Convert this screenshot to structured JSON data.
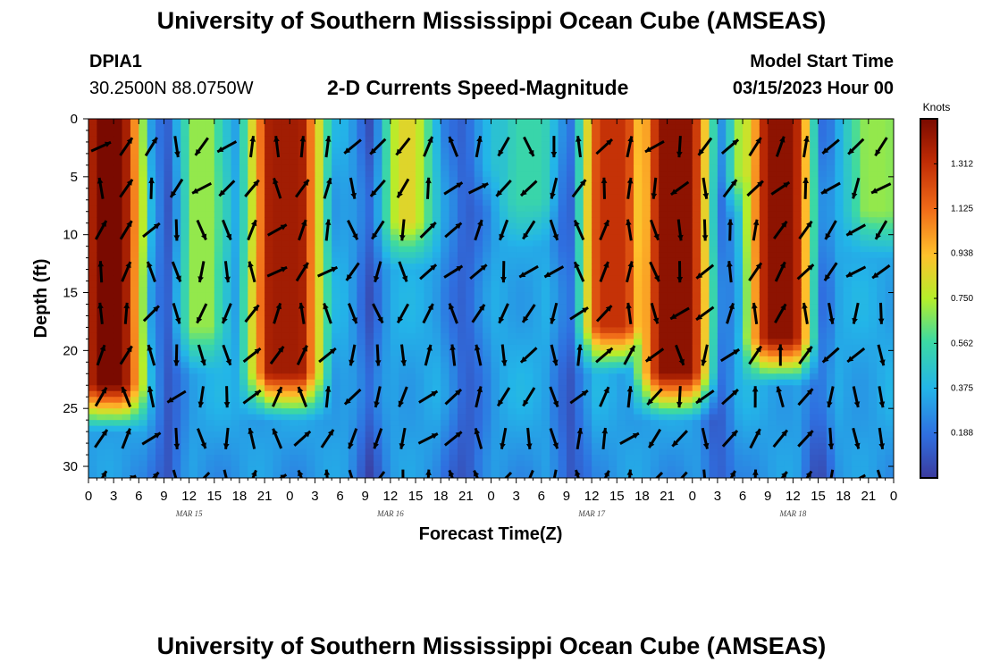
{
  "header": {
    "title": "University of Southern Mississippi Ocean Cube (AMSEAS)",
    "station_id": "DPIA1",
    "location": "30.2500N  88.0750W",
    "plot_title": "2-D Currents Speed-Magnitude",
    "model_start_label": "Model Start Time",
    "model_start_value": "03/15/2023 Hour 00"
  },
  "footer": {
    "title": "University of Southern Mississippi Ocean Cube (AMSEAS)"
  },
  "colors": {
    "slowest": "#3b3b9e",
    "fastest": "#7a0a00",
    "arrow": "#000000"
  },
  "chart_data": {
    "type": "heatmap",
    "title": "2-D Currents Speed-Magnitude",
    "xlabel": "Forecast Time(Z)",
    "ylabel": "Depth (ft)",
    "units": "Knots",
    "x_tick_labels": [
      "0",
      "3",
      "6",
      "9",
      "12",
      "15",
      "18",
      "21",
      "0",
      "3",
      "6",
      "9",
      "12",
      "15",
      "18",
      "21",
      "0",
      "3",
      "6",
      "9",
      "12",
      "15",
      "18",
      "21",
      "0",
      "3",
      "6",
      "9",
      "12",
      "15",
      "18",
      "21",
      "0"
    ],
    "date_labels": [
      {
        "label": "MAR 15",
        "hour": 12
      },
      {
        "label": "MAR 16",
        "hour": 36
      },
      {
        "label": "MAR 17",
        "hour": 60
      },
      {
        "label": "MAR 18",
        "hour": 84
      }
    ],
    "xlim": [
      0,
      96
    ],
    "ylim": [
      0,
      31
    ],
    "y_ticks": [
      0,
      5,
      10,
      15,
      20,
      25,
      30
    ],
    "colorbar_ticks": [
      "0.188",
      "0.375",
      "0.562",
      "0.750",
      "0.938",
      "1.125",
      "1.312"
    ],
    "colorbar_range": [
      0,
      1.5
    ],
    "fast_bands": [
      {
        "center_hour": 2.5,
        "half_width_hours": 3.0,
        "max_depth_ft": 23,
        "peak_knots": 1.5
      },
      {
        "center_hour": 13.5,
        "half_width_hours": 1.8,
        "max_depth_ft": 18,
        "peak_knots": 0.7
      },
      {
        "center_hour": 23.5,
        "half_width_hours": 3.5,
        "max_depth_ft": 22,
        "peak_knots": 1.4
      },
      {
        "center_hour": 38.0,
        "half_width_hours": 1.8,
        "max_depth_ft": 9,
        "peak_knots": 0.85
      },
      {
        "center_hour": 52.5,
        "half_width_hours": 2.5,
        "max_depth_ft": 7,
        "peak_knots": 0.55
      },
      {
        "center_hour": 48.0,
        "half_width_hours": 1.0,
        "max_depth_ft": 4,
        "peak_knots": 0.45
      },
      {
        "center_hour": 70.0,
        "half_width_hours": 3.5,
        "max_depth_ft": 22,
        "peak_knots": 1.45
      },
      {
        "center_hour": 62.5,
        "half_width_hours": 3.0,
        "max_depth_ft": 18,
        "peak_knots": 1.3
      },
      {
        "center_hour": 79.0,
        "half_width_hours": 2.0,
        "max_depth_ft": 5,
        "peak_knots": 0.8
      },
      {
        "center_hour": 82.5,
        "half_width_hours": 3.0,
        "max_depth_ft": 19,
        "peak_knots": 1.45
      },
      {
        "center_hour": 94.0,
        "half_width_hours": 2.5,
        "max_depth_ft": 8,
        "peak_knots": 0.7
      }
    ],
    "slow_bands": [
      {
        "center_hour": 9.5,
        "half_width_hours": 1.5
      },
      {
        "center_hour": 33.5,
        "half_width_hours": 1.3
      },
      {
        "center_hour": 45.0,
        "half_width_hours": 2.5
      },
      {
        "center_hour": 57.5,
        "half_width_hours": 1.8
      },
      {
        "center_hour": 75.0,
        "half_width_hours": 1.5
      },
      {
        "center_hour": 87.0,
        "half_width_hours": 1.3
      }
    ]
  }
}
